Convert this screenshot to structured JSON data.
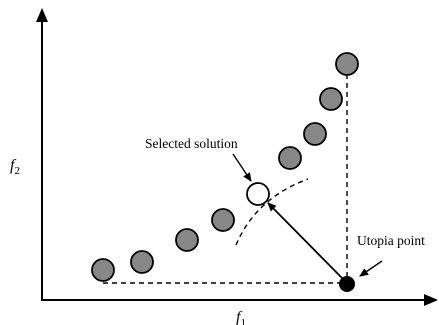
{
  "labels": {
    "selected": "Selected solution",
    "utopia": "Utopia point",
    "x_axis_var": "f",
    "x_axis_sub": "1",
    "y_axis_var": "f",
    "y_axis_sub": "2"
  },
  "colors": {
    "pareto_fill": "#878787",
    "selected_fill": "#ffffff",
    "utopia_fill": "#000000",
    "stroke": "#000000"
  }
}
